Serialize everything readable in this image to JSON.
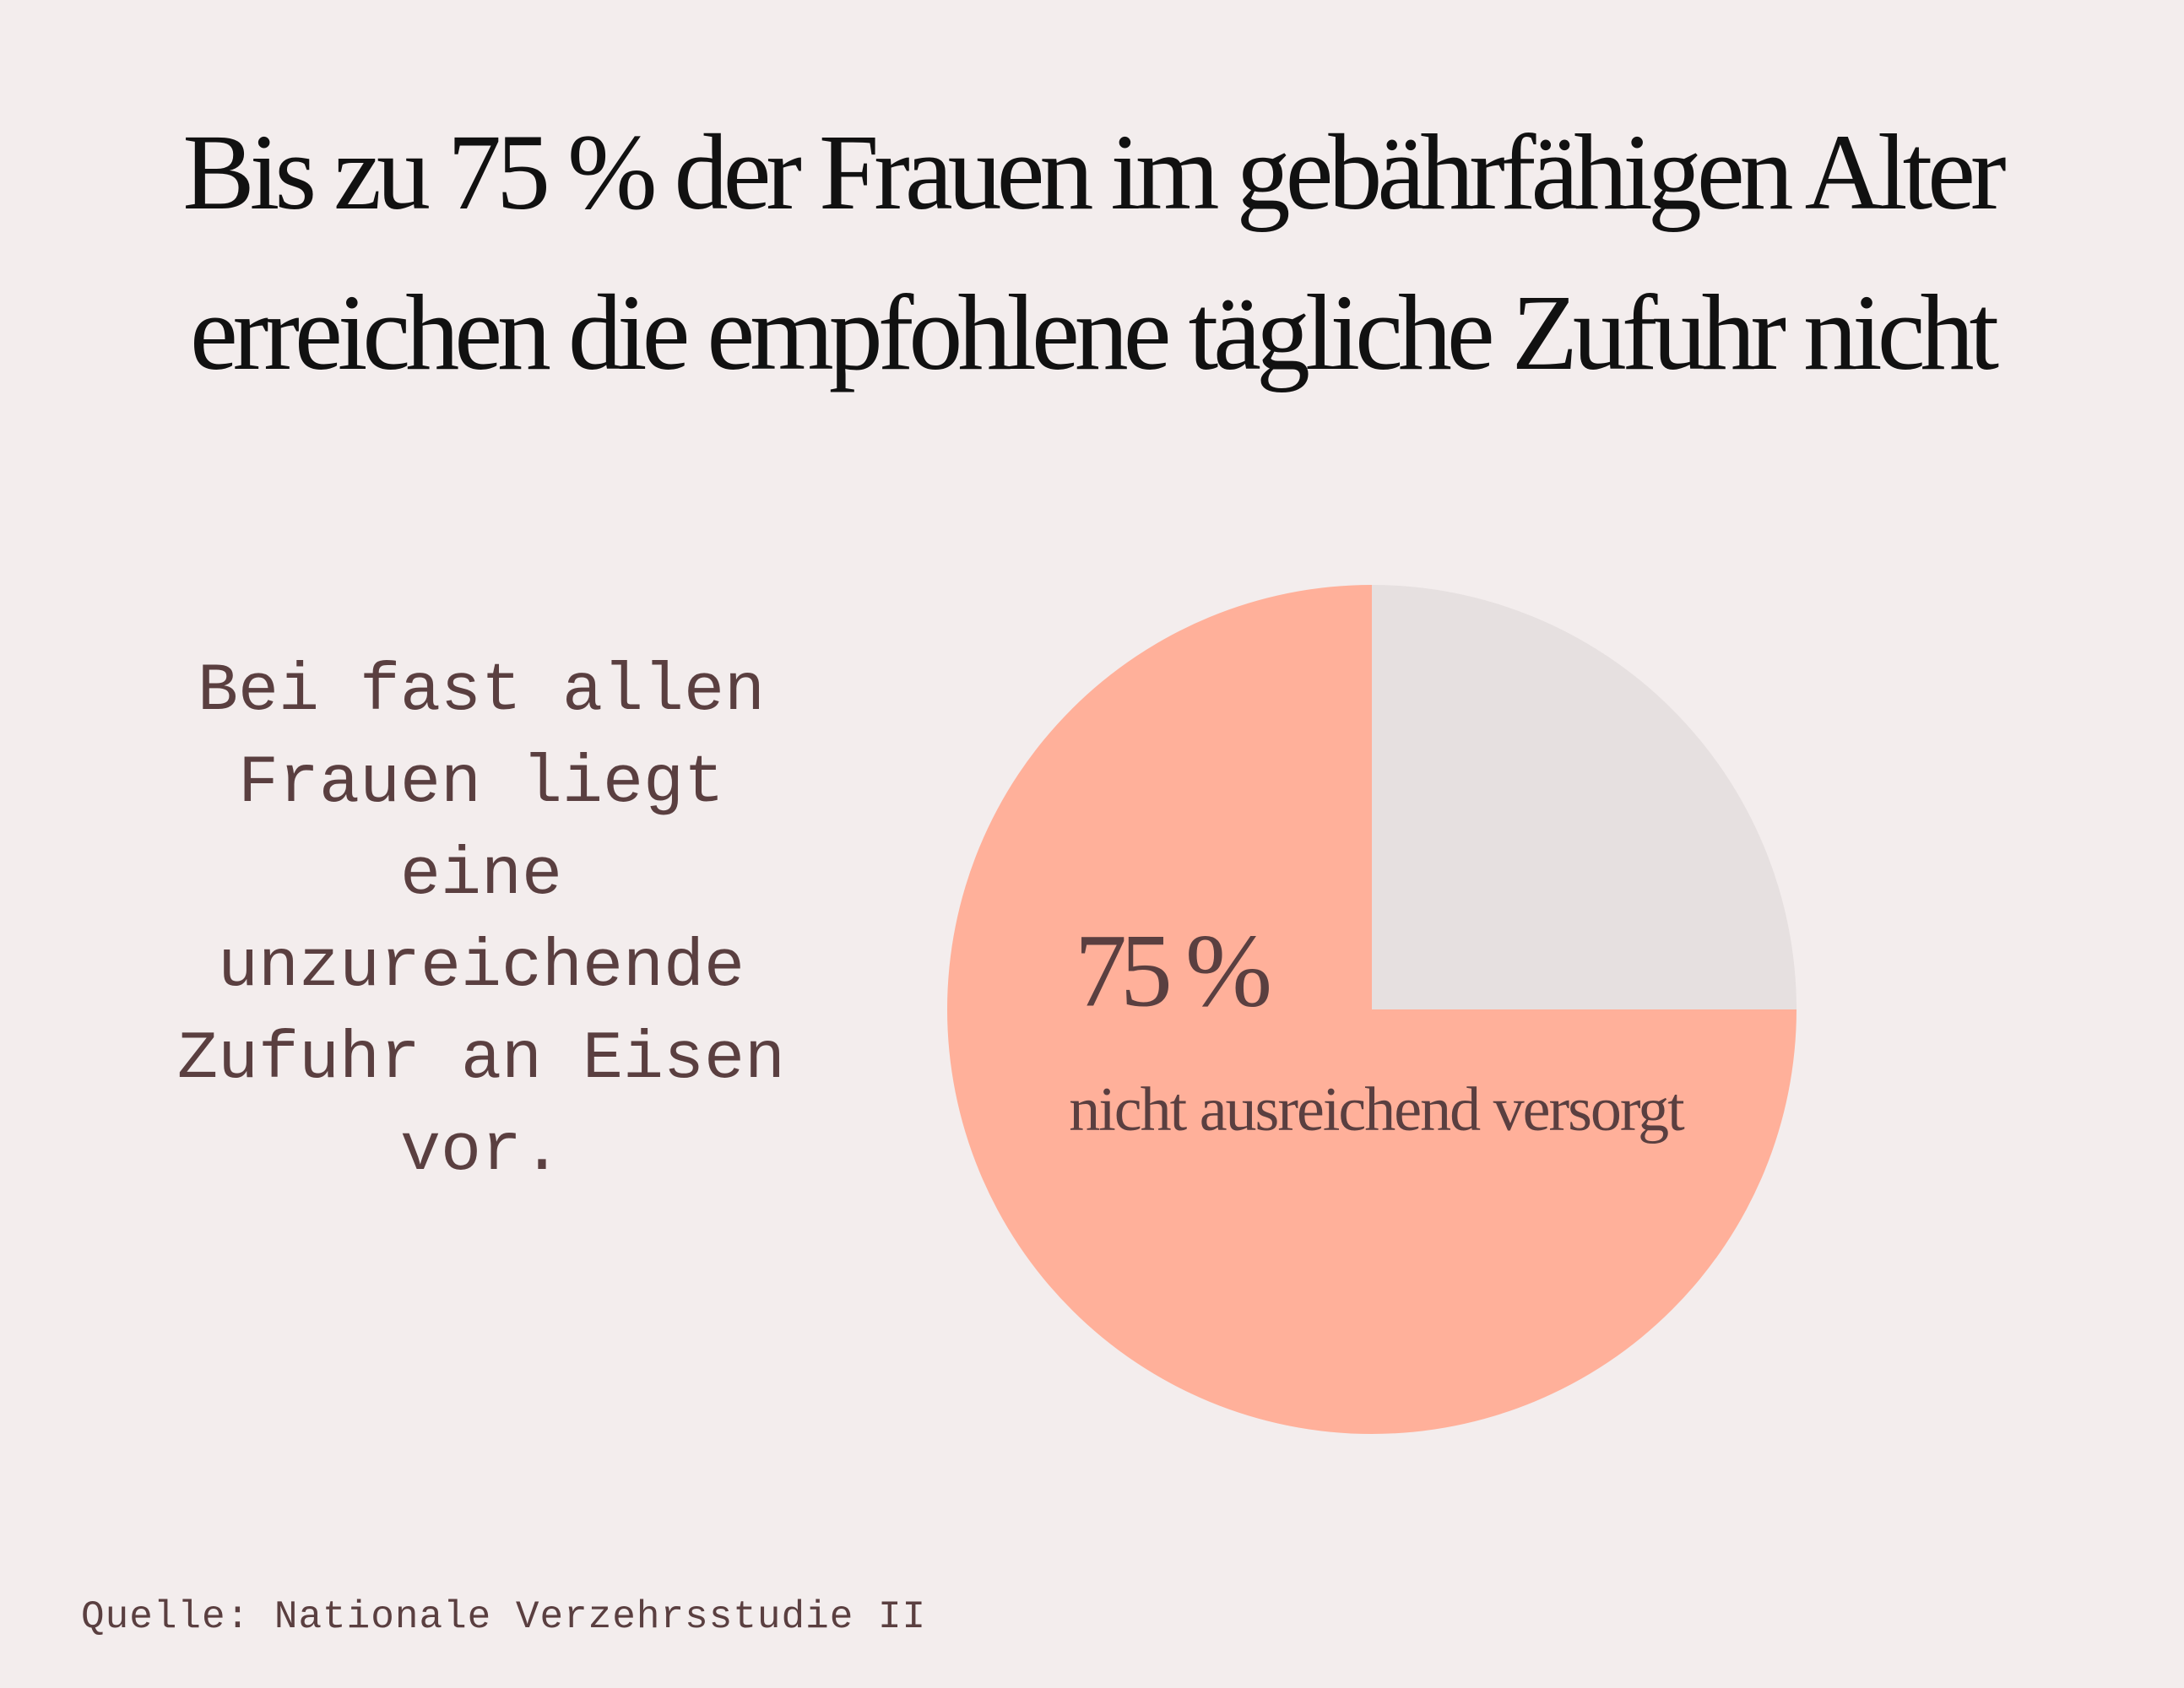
{
  "chart_data": {
    "type": "pie",
    "title": [
      "Bis zu 75 % der Frauen im gebährfähigen Alter",
      "erreichen die empfohlene tägliche Zufuhr nicht"
    ],
    "categories": [
      "nicht ausreichend versorgt",
      null
    ],
    "values": [
      75,
      25
    ],
    "value_labels": [
      "75 %",
      null
    ],
    "colors": [
      "#ffb09a",
      "#e6e0e0"
    ],
    "annotation": "Bei fast allen Frauen liegt eine unzureichende Zufuhr an Eisen vor.",
    "source": "Quelle: Nationale Verzehrsstudie II"
  }
}
